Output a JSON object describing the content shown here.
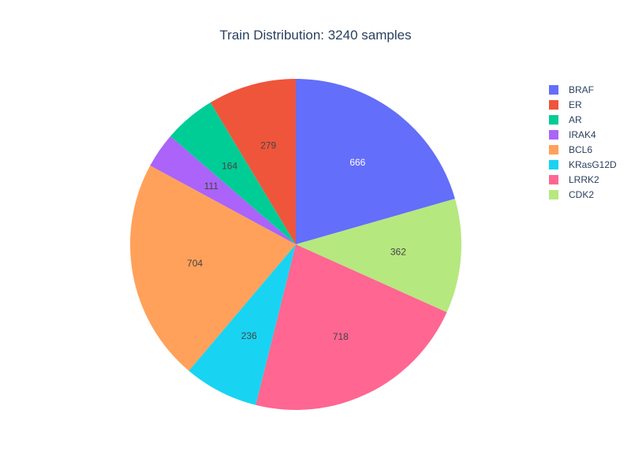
{
  "chart_data": {
    "type": "pie",
    "title": "Train Distribution: 3240 samples",
    "direction": "clockwise",
    "start": "12 o'clock",
    "legend_placement": "top-right",
    "slices": [
      {
        "label": "BRAF",
        "value": 666,
        "color": "#636efa",
        "text_color": "#ffffff"
      },
      {
        "label": "CDK2",
        "value": 362,
        "color": "#b6e880",
        "text_color": "#444444"
      },
      {
        "label": "LRRK2",
        "value": 718,
        "color": "#ff6692",
        "text_color": "#444444"
      },
      {
        "label": "KRasG12D",
        "value": 236,
        "color": "#19d3f3",
        "text_color": "#444444"
      },
      {
        "label": "BCL6",
        "value": 704,
        "color": "#ffa15a",
        "text_color": "#444444"
      },
      {
        "label": "IRAK4",
        "value": 111,
        "color": "#ab63fa",
        "text_color": "#444444"
      },
      {
        "label": "AR",
        "value": 164,
        "color": "#00cc96",
        "text_color": "#444444"
      },
      {
        "label": "ER",
        "value": 279,
        "color": "#ef553b",
        "text_color": "#444444"
      }
    ],
    "legend_order": [
      "BRAF",
      "ER",
      "AR",
      "IRAK4",
      "BCL6",
      "KRasG12D",
      "LRRK2",
      "CDK2"
    ]
  }
}
